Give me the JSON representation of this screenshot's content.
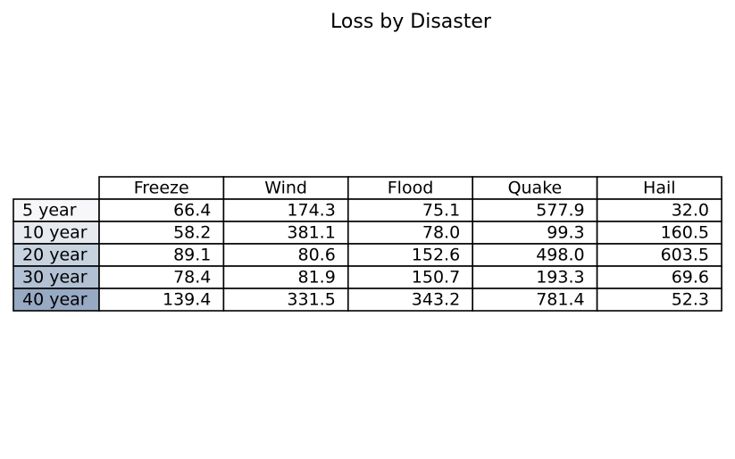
{
  "chart_data": {
    "type": "table",
    "title": "Loss by Disaster",
    "columns": [
      "Freeze",
      "Wind",
      "Flood",
      "Quake",
      "Hail"
    ],
    "rows": [
      "5 year",
      "10 year",
      "20 year",
      "30 year",
      "40 year"
    ],
    "values": [
      [
        "66.4",
        "174.3",
        "75.1",
        "577.9",
        "32.0"
      ],
      [
        "58.2",
        "381.1",
        "78.0",
        "99.3",
        "160.5"
      ],
      [
        "89.1",
        "80.6",
        "152.6",
        "498.0",
        "603.5"
      ],
      [
        "78.4",
        "81.9",
        "150.7",
        "193.3",
        "69.6"
      ],
      [
        "139.4",
        "331.5",
        "343.2",
        "781.4",
        "52.3"
      ]
    ],
    "row_label_colors": [
      "#f7f7fa",
      "#e7ebf0",
      "#c8d3e0",
      "#b2c1d4",
      "#97a9c3"
    ],
    "grid": true
  }
}
